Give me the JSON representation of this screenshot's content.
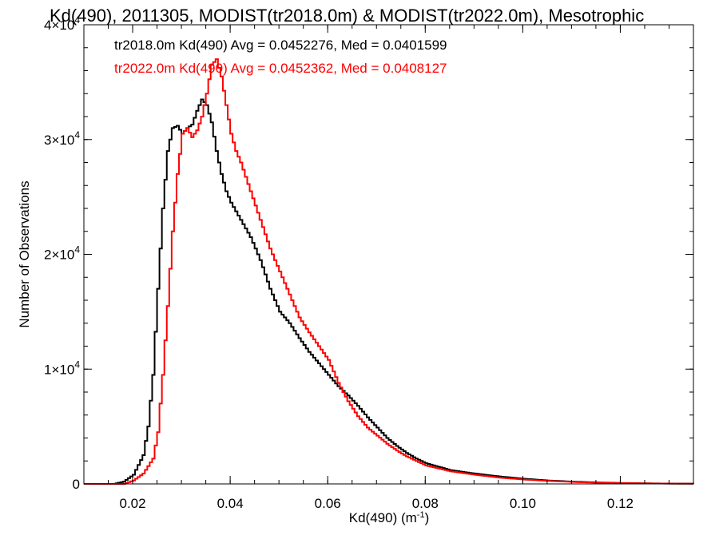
{
  "chart_data": {
    "type": "line",
    "title": "Kd(490), 2011305, MODIST(tr2018.0m) & MODIST(tr2022.0m), Mesotrophic",
    "xlabel": "Kd(490) (m",
    "xlabel_sup": "-1",
    "xlabel_close": ")",
    "ylabel": "Number of Observations",
    "xlim": [
      0.01,
      0.135
    ],
    "ylim": [
      0,
      40000
    ],
    "x_ticks": [
      {
        "value": 0.02,
        "label": "0.02"
      },
      {
        "value": 0.04,
        "label": "0.04"
      },
      {
        "value": 0.06,
        "label": "0.06"
      },
      {
        "value": 0.08,
        "label": "0.08"
      },
      {
        "value": 0.1,
        "label": "0.10"
      },
      {
        "value": 0.12,
        "label": "0.12"
      }
    ],
    "y_ticks": [
      {
        "value": 0,
        "mant": "0",
        "exp": ""
      },
      {
        "value": 10000,
        "mant": "1×10",
        "exp": "4"
      },
      {
        "value": 20000,
        "mant": "2×10",
        "exp": "4"
      },
      {
        "value": 30000,
        "mant": "3×10",
        "exp": "4"
      },
      {
        "value": 40000,
        "mant": "4×10",
        "exp": "4"
      }
    ],
    "grid": false,
    "legend_position": "top-left",
    "series": [
      {
        "name": "tr2018.0m Kd(490) Avg = 0.0452276, Med = 0.0401599",
        "color": "#000000",
        "points": [
          [
            0.01,
            0
          ],
          [
            0.016,
            0
          ],
          [
            0.018,
            200
          ],
          [
            0.02,
            800
          ],
          [
            0.022,
            2500
          ],
          [
            0.023,
            5000
          ],
          [
            0.024,
            9500
          ],
          [
            0.025,
            17000
          ],
          [
            0.026,
            24000
          ],
          [
            0.027,
            29000
          ],
          [
            0.028,
            31000
          ],
          [
            0.029,
            31200
          ],
          [
            0.03,
            30500
          ],
          [
            0.031,
            31000
          ],
          [
            0.032,
            31300
          ],
          [
            0.033,
            32500
          ],
          [
            0.034,
            33500
          ],
          [
            0.035,
            33000
          ],
          [
            0.036,
            31500
          ],
          [
            0.037,
            29000
          ],
          [
            0.038,
            27000
          ],
          [
            0.039,
            25500
          ],
          [
            0.04,
            24500
          ],
          [
            0.042,
            23000
          ],
          [
            0.044,
            21500
          ],
          [
            0.046,
            19500
          ],
          [
            0.048,
            17000
          ],
          [
            0.05,
            15000
          ],
          [
            0.052,
            14000
          ],
          [
            0.054,
            12700
          ],
          [
            0.056,
            11500
          ],
          [
            0.058,
            10500
          ],
          [
            0.06,
            9500
          ],
          [
            0.062,
            8500
          ],
          [
            0.064,
            7700
          ],
          [
            0.066,
            6800
          ],
          [
            0.068,
            5800
          ],
          [
            0.07,
            4900
          ],
          [
            0.072,
            4000
          ],
          [
            0.074,
            3300
          ],
          [
            0.076,
            2700
          ],
          [
            0.078,
            2200
          ],
          [
            0.08,
            1800
          ],
          [
            0.085,
            1200
          ],
          [
            0.09,
            900
          ],
          [
            0.095,
            650
          ],
          [
            0.1,
            450
          ],
          [
            0.105,
            300
          ],
          [
            0.11,
            200
          ],
          [
            0.115,
            130
          ],
          [
            0.12,
            80
          ],
          [
            0.125,
            50
          ],
          [
            0.13,
            30
          ],
          [
            0.135,
            20
          ]
        ]
      },
      {
        "name": "tr2022.0m Kd(490) Avg = 0.0452362, Med = 0.0408127",
        "color": "#ff0000",
        "points": [
          [
            0.01,
            0
          ],
          [
            0.018,
            0
          ],
          [
            0.02,
            300
          ],
          [
            0.022,
            900
          ],
          [
            0.024,
            2200
          ],
          [
            0.025,
            4500
          ],
          [
            0.026,
            9500
          ],
          [
            0.027,
            15500
          ],
          [
            0.028,
            22000
          ],
          [
            0.029,
            27000
          ],
          [
            0.03,
            30500
          ],
          [
            0.031,
            31000
          ],
          [
            0.032,
            30200
          ],
          [
            0.033,
            30800
          ],
          [
            0.034,
            32000
          ],
          [
            0.035,
            34000
          ],
          [
            0.036,
            36500
          ],
          [
            0.037,
            37000
          ],
          [
            0.038,
            35500
          ],
          [
            0.039,
            33000
          ],
          [
            0.04,
            30500
          ],
          [
            0.041,
            29000
          ],
          [
            0.042,
            28000
          ],
          [
            0.044,
            25500
          ],
          [
            0.046,
            23000
          ],
          [
            0.048,
            20500
          ],
          [
            0.05,
            18500
          ],
          [
            0.052,
            16500
          ],
          [
            0.054,
            14500
          ],
          [
            0.056,
            13200
          ],
          [
            0.058,
            12000
          ],
          [
            0.06,
            10800
          ],
          [
            0.062,
            8800
          ],
          [
            0.064,
            7200
          ],
          [
            0.066,
            5900
          ],
          [
            0.068,
            4900
          ],
          [
            0.07,
            4200
          ],
          [
            0.072,
            3500
          ],
          [
            0.074,
            2900
          ],
          [
            0.076,
            2400
          ],
          [
            0.078,
            2000
          ],
          [
            0.08,
            1600
          ],
          [
            0.085,
            1100
          ],
          [
            0.09,
            800
          ],
          [
            0.095,
            550
          ],
          [
            0.1,
            380
          ],
          [
            0.105,
            260
          ],
          [
            0.11,
            170
          ],
          [
            0.115,
            110
          ],
          [
            0.12,
            70
          ],
          [
            0.125,
            45
          ],
          [
            0.13,
            25
          ],
          [
            0.135,
            15
          ]
        ]
      }
    ]
  }
}
